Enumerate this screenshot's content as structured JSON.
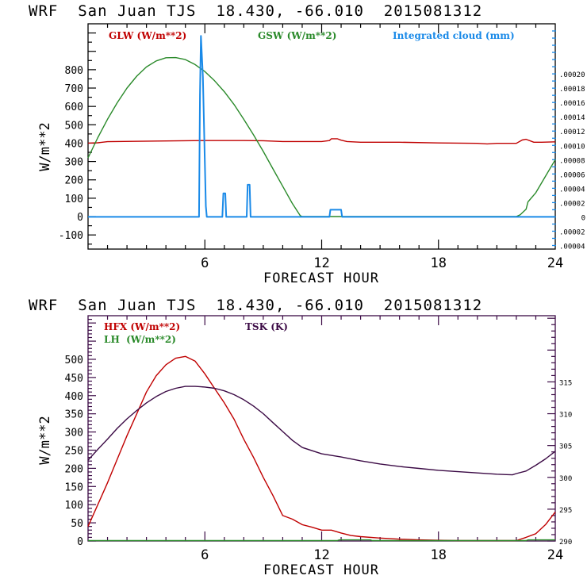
{
  "chart_data": [
    {
      "type": "line",
      "title": "WRF  San Juan TJS  18.430, -66.010  2015081312",
      "xlabel": "FORECAST HOUR",
      "ylabel": "W/m**2",
      "xlim": [
        0,
        24
      ],
      "ylim": [
        -177,
        1050
      ],
      "xticks": [
        6,
        12,
        18,
        24
      ],
      "xtick_labels": [
        "6",
        "12",
        "18",
        "24"
      ],
      "yticks": [
        -100,
        0,
        100,
        200,
        300,
        400,
        500,
        600,
        700,
        800
      ],
      "ytick_labels": [
        "-100",
        "0",
        "100",
        "200",
        "300",
        "400",
        "500",
        "600",
        "700",
        "800"
      ],
      "y2lim": [
        -4.5e-05,
        0.00027
      ],
      "y2ticks": [
        -4e-05,
        -2e-05,
        0,
        2e-05,
        4e-05,
        6e-05,
        8e-05,
        0.0001,
        0.00012,
        0.00014,
        0.00016,
        0.00018,
        0.0002
      ],
      "y2tick_labels": [
        ".00004",
        ".00002",
        "0",
        ".00002",
        ".00004",
        ".00006",
        ".00008",
        ".00010",
        ".00012",
        ".00014",
        ".00016",
        ".00018",
        ".00020"
      ],
      "legend_position": "top",
      "series": [
        {
          "name": "GLW (W/m**2)",
          "color": "#c00000",
          "axis": "left",
          "x": [
            0,
            0.5,
            1,
            4,
            6,
            8,
            9,
            10,
            11.5,
            12,
            12.4,
            12.5,
            12.8,
            13,
            13.3,
            14,
            16,
            18,
            20,
            20.5,
            21,
            22,
            22.3,
            22.5,
            22.9,
            23.3,
            24
          ],
          "y": [
            400,
            402,
            408,
            412,
            414,
            414,
            413,
            409,
            409,
            409,
            414,
            424,
            424,
            416,
            409,
            405,
            405,
            401,
            399,
            396,
            399,
            399,
            417,
            421,
            405,
            405,
            407
          ]
        },
        {
          "name": "GSW (W/m**2)",
          "color": "#2a8a2a",
          "axis": "left",
          "x": [
            0,
            0.5,
            1,
            1.5,
            2,
            2.5,
            3,
            3.5,
            4,
            4.5,
            5,
            5.5,
            6,
            6.5,
            7,
            7.5,
            8,
            8.5,
            9,
            9.5,
            10,
            10.5,
            10.9,
            11,
            22,
            22.2,
            22.5,
            22.6,
            23,
            23.5,
            24
          ],
          "y": [
            320,
            430,
            530,
            620,
            700,
            765,
            815,
            848,
            865,
            866,
            855,
            828,
            790,
            740,
            680,
            610,
            530,
            445,
            355,
            260,
            165,
            70,
            5,
            0,
            0,
            10,
            40,
            80,
            130,
            220,
            310
          ]
        },
        {
          "name": "Integrated cloud (mm)",
          "color": "#1a8ae8",
          "axis": "right",
          "x": [
            0,
            5.7,
            5.75,
            5.8,
            5.9,
            6.05,
            6.1,
            6.9,
            6.95,
            7.05,
            7.1,
            8.15,
            8.2,
            8.3,
            8.35,
            12.4,
            12.45,
            13.0,
            13.05,
            24
          ],
          "y": [
            0,
            0,
            0.00017,
            0.000253,
            0.000195,
            1.5e-05,
            0,
            0,
            3.3e-05,
            3.3e-05,
            0,
            0,
            4.5e-05,
            4.5e-05,
            0,
            0,
            1e-05,
            1e-05,
            0,
            0
          ]
        }
      ]
    },
    {
      "type": "line",
      "title": "WRF  San Juan TJS  18.430, -66.010  2015081312",
      "xlabel": "FORECAST HOUR",
      "ylabel": "W/m**2",
      "xlim": [
        0,
        24
      ],
      "ylim": [
        0,
        620
      ],
      "xticks": [
        6,
        12,
        18,
        24
      ],
      "xtick_labels": [
        "6",
        "12",
        "18",
        "24"
      ],
      "yticks": [
        0,
        50,
        100,
        150,
        200,
        250,
        300,
        350,
        400,
        450,
        500
      ],
      "ytick_labels": [
        "0",
        "50",
        "100",
        "150",
        "200",
        "250",
        "300",
        "350",
        "400",
        "450",
        "500"
      ],
      "y2lim": [
        290,
        325.4
      ],
      "y2ticks": [
        290,
        295,
        300,
        305,
        310,
        315
      ],
      "y2tick_labels": [
        "290",
        "295",
        "300",
        "305",
        "310",
        "315"
      ],
      "legend_position": "top",
      "series": [
        {
          "name": "HFX (W/m**2)",
          "color": "#c00000",
          "axis": "left",
          "x": [
            0,
            0.5,
            1,
            1.5,
            2,
            2.5,
            3,
            3.5,
            4,
            4.5,
            5,
            5.5,
            6,
            6.5,
            7,
            7.5,
            8,
            8.5,
            9,
            9.5,
            10,
            10.5,
            11,
            11.5,
            12,
            12.5,
            13,
            13.5,
            14,
            15,
            16,
            17,
            18,
            19,
            20,
            21,
            22,
            22.5,
            23,
            23.5,
            24
          ],
          "y": [
            40,
            100,
            160,
            225,
            290,
            350,
            410,
            455,
            485,
            503,
            508,
            495,
            460,
            420,
            380,
            335,
            280,
            230,
            175,
            125,
            70,
            60,
            45,
            38,
            30,
            30,
            22,
            15,
            12,
            8,
            5,
            3,
            2,
            1,
            1,
            1,
            1,
            10,
            20,
            45,
            80
          ]
        },
        {
          "name": "LH (W/m**2)",
          "color": "#2a8a2a",
          "axis": "left",
          "x": [
            0,
            12.8,
            12.9,
            14.5,
            14.6,
            22.5,
            22.6,
            24
          ],
          "y": [
            1,
            1,
            3,
            3,
            1,
            1,
            3,
            3
          ]
        },
        {
          "name": "TSK (K)",
          "color": "#3b0a45",
          "axis": "right",
          "x": [
            0,
            0.5,
            1,
            1.5,
            2,
            2.5,
            3,
            3.5,
            4,
            4.5,
            5,
            5.5,
            6,
            6.5,
            7,
            7.5,
            8,
            8.5,
            9,
            9.5,
            10,
            10.5,
            11,
            12,
            13,
            14,
            15,
            16,
            17,
            18,
            19,
            20,
            21,
            21.8,
            22,
            22.5,
            23,
            23.5,
            24
          ],
          "y": [
            302.7,
            304.4,
            306.0,
            307.7,
            309.2,
            310.5,
            311.7,
            312.7,
            313.5,
            314.0,
            314.3,
            314.3,
            314.2,
            314.0,
            313.6,
            313.0,
            312.2,
            311.2,
            310.0,
            308.6,
            307.2,
            305.8,
            304.7,
            303.7,
            303.2,
            302.6,
            302.1,
            301.7,
            301.4,
            301.1,
            300.9,
            300.7,
            300.5,
            300.4,
            300.6,
            301.0,
            301.9,
            302.9,
            304.1
          ]
        }
      ]
    }
  ],
  "top_chart": {
    "title": "WRF  San Juan TJS  18.430, -66.010  2015081312",
    "legend": {
      "glw": "GLW (W/m**2)",
      "gsw": "GSW (W/m**2)",
      "cloud": "Integrated cloud (mm)"
    },
    "xlabel": "FORECAST HOUR",
    "ylabel": "W/m**2"
  },
  "bottom_chart": {
    "title": "WRF  San Juan TJS  18.430, -66.010  2015081312",
    "legend": {
      "hfx": "HFX (W/m**2)",
      "lh": "LH  (W/m**2)",
      "tsk": "TSK (K)"
    },
    "xlabel": "FORECAST HOUR",
    "ylabel": "W/m**2"
  },
  "colors": {
    "red": "#c00000",
    "green": "#2a8a2a",
    "blue": "#1a8ae8",
    "purple": "#3b0a45",
    "axis_top": "#000000",
    "axis_bottom": "#3b0a45"
  }
}
